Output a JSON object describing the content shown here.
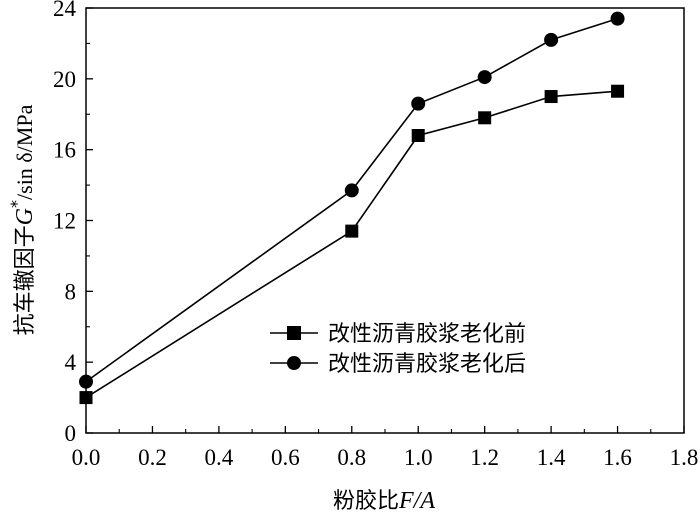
{
  "chart_data": {
    "type": "line",
    "xlabel": {
      "prefix": "粉胶比",
      "var": "F/A"
    },
    "ylabel": {
      "prefix": "抗车辙因子",
      "var": "G",
      "sup": "*",
      "suffix": "/sin δ/MPa"
    },
    "xlim": [
      0.0,
      1.8
    ],
    "ylim": [
      0,
      24
    ],
    "x_ticks": [
      "0.0",
      "0.2",
      "0.4",
      "0.6",
      "0.8",
      "1.0",
      "1.2",
      "1.4",
      "1.6",
      "1.8"
    ],
    "y_ticks": [
      "0",
      "4",
      "8",
      "12",
      "16",
      "20",
      "24"
    ],
    "legend_position": "center-right",
    "series": [
      {
        "name": "改性沥青胶浆老化前",
        "marker": "square",
        "x": [
          0.0,
          0.8,
          1.0,
          1.2,
          1.4,
          1.6
        ],
        "y": [
          2.0,
          11.4,
          16.8,
          17.8,
          19.0,
          19.3
        ]
      },
      {
        "name": "改性沥青胶浆老化后",
        "marker": "circle",
        "x": [
          0.0,
          0.8,
          1.0,
          1.2,
          1.4,
          1.6
        ],
        "y": [
          2.9,
          13.7,
          18.6,
          20.1,
          22.2,
          23.4
        ]
      }
    ]
  }
}
